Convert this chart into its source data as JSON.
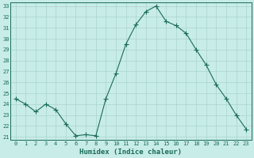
{
  "x": [
    0,
    1,
    2,
    3,
    4,
    5,
    6,
    7,
    8,
    9,
    10,
    11,
    12,
    13,
    14,
    15,
    16,
    17,
    18,
    19,
    20,
    21,
    22,
    23
  ],
  "y": [
    24.5,
    24.0,
    23.3,
    24.0,
    23.5,
    22.2,
    21.1,
    21.2,
    21.1,
    24.5,
    26.8,
    29.5,
    31.3,
    32.5,
    33.0,
    31.6,
    31.2,
    30.5,
    29.0,
    27.6,
    25.8,
    24.5,
    23.0,
    21.7
  ],
  "line_color": "#1a6b5a",
  "marker": "+",
  "marker_size": 4,
  "bg_color": "#c8ece8",
  "grid_color": "#aad4ce",
  "xlabel": "Humidex (Indice chaleur)",
  "ylim_min": 21,
  "ylim_max": 33,
  "xlim_min": -0.5,
  "xlim_max": 23.5,
  "yticks": [
    21,
    22,
    23,
    24,
    25,
    26,
    27,
    28,
    29,
    30,
    31,
    32,
    33
  ],
  "xticks": [
    0,
    1,
    2,
    3,
    4,
    5,
    6,
    7,
    8,
    9,
    10,
    11,
    12,
    13,
    14,
    15,
    16,
    17,
    18,
    19,
    20,
    21,
    22,
    23
  ],
  "tick_fontsize": 5.0,
  "xlabel_fontsize": 6.5,
  "tick_color": "#1a6b5a",
  "axis_color": "#1a6b5a",
  "linewidth": 0.8,
  "marker_linewidth": 0.8
}
